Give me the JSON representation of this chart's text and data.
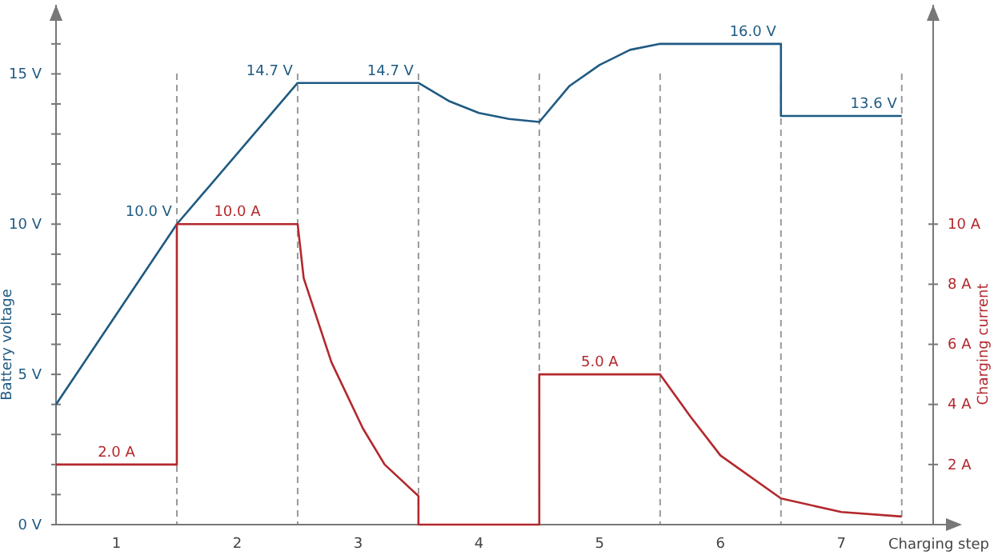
{
  "chart_data": {
    "type": "line",
    "xlabel": "Charging step",
    "ylabel": "Battery voltage",
    "y2label": "Charging current",
    "xlim": [
      0,
      7.26
    ],
    "xticks": [
      {
        "value": 0.5,
        "label": "1"
      },
      {
        "value": 1.5,
        "label": "2"
      },
      {
        "value": 2.5,
        "label": "3"
      },
      {
        "value": 3.5,
        "label": "4"
      },
      {
        "value": 4.5,
        "label": "5"
      },
      {
        "value": 5.5,
        "label": "6"
      },
      {
        "value": 6.5,
        "label": "7"
      }
    ],
    "ylim": [
      0,
      17.3
    ],
    "yticks": [
      {
        "value": 0,
        "label": "0 V"
      },
      {
        "value": 1,
        "label": null
      },
      {
        "value": 2,
        "label": null
      },
      {
        "value": 3,
        "label": null
      },
      {
        "value": 4,
        "label": null
      },
      {
        "value": 5,
        "label": "5 V"
      },
      {
        "value": 6,
        "label": null
      },
      {
        "value": 7,
        "label": null
      },
      {
        "value": 8,
        "label": null
      },
      {
        "value": 9,
        "label": null
      },
      {
        "value": 10,
        "label": "10 V"
      },
      {
        "value": 11,
        "label": null
      },
      {
        "value": 12,
        "label": null
      },
      {
        "value": 13,
        "label": null
      },
      {
        "value": 14,
        "label": null
      },
      {
        "value": 15,
        "label": "15 V"
      },
      {
        "value": 16,
        "label": null
      }
    ],
    "y2lim": [
      0,
      17.3
    ],
    "y2ticks": [
      {
        "value": 2,
        "label": "2 A"
      },
      {
        "value": 4,
        "label": "4 A"
      },
      {
        "value": 6,
        "label": "6 A"
      },
      {
        "value": 8,
        "label": "8 A"
      },
      {
        "value": 10,
        "label": "10 A"
      }
    ],
    "series": [
      {
        "color": "#1f5a82",
        "x": [
          0,
          1,
          2,
          3,
          3.25,
          3.5,
          3.75,
          4,
          4.25,
          4.5,
          4.75,
          5,
          6,
          6,
          7
        ],
        "values": [
          4,
          10,
          14.7,
          14.7,
          14.1,
          13.7,
          13.5,
          13.4,
          14.6,
          15.3,
          15.8,
          16,
          16,
          13.6,
          13.6
        ]
      },
      {
        "color": "#b3282d",
        "axis": "y2",
        "x": [
          0,
          1,
          1,
          2,
          2.05,
          2.28,
          2.54,
          2.72,
          3,
          3,
          4,
          4,
          5,
          5.25,
          5.5,
          6,
          6.5,
          7
        ],
        "values": [
          2,
          2,
          10,
          10,
          8.2,
          5.4,
          3.2,
          2.0,
          0.95,
          0,
          0,
          5,
          5,
          3.6,
          2.3,
          0.87,
          0.42,
          0.27
        ]
      }
    ],
    "ref_lines": [
      {
        "axis": "x",
        "value": 1,
        "color": "#999999",
        "line_style": "dashed"
      },
      {
        "axis": "x",
        "value": 2,
        "color": "#999999",
        "line_style": "dashed"
      },
      {
        "axis": "x",
        "value": 3,
        "color": "#999999",
        "line_style": "dashed"
      },
      {
        "axis": "x",
        "value": 4,
        "color": "#999999",
        "line_style": "dashed"
      },
      {
        "axis": "x",
        "value": 5,
        "color": "#999999",
        "line_style": "dashed"
      },
      {
        "axis": "x",
        "value": 6,
        "color": "#999999",
        "line_style": "dashed"
      },
      {
        "axis": "x",
        "value": 7,
        "color": "#999999",
        "line_style": "dashed"
      }
    ],
    "annotations": [
      {
        "text": "10.0 V",
        "x": 1,
        "y": 10
      },
      {
        "text": "14.7 V",
        "x": 2,
        "y": 14.7
      },
      {
        "text": "14.7 V",
        "x": 3,
        "y": 14.7
      },
      {
        "text": "16.0 V",
        "x": 6,
        "y": 16
      },
      {
        "text": "13.6 V",
        "x": 7,
        "y": 13.6
      },
      {
        "text": "2.0 A",
        "x": 0.5,
        "y": 2
      },
      {
        "text": "10.0 A",
        "x": 1.5,
        "y": 10
      },
      {
        "text": "5.0 A",
        "x": 4.5,
        "y": 5
      }
    ],
    "line_style": "solid",
    "marker": "none",
    "grid": false
  }
}
